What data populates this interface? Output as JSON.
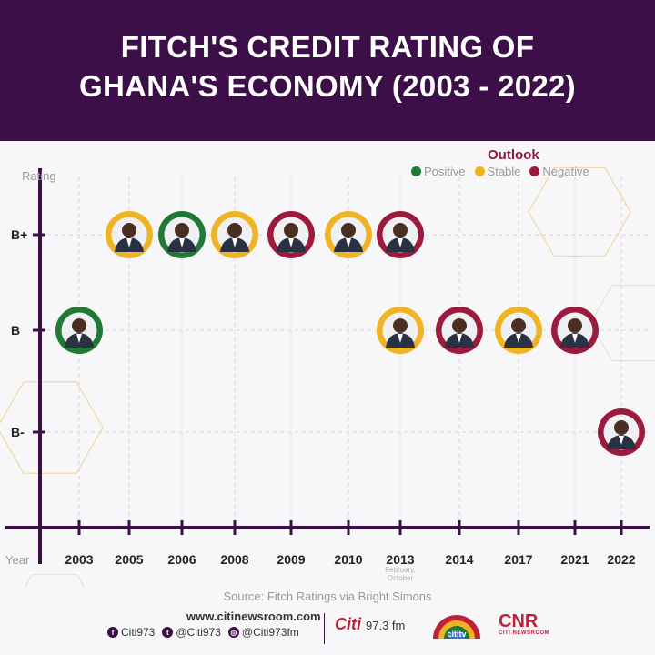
{
  "title_line1": "FITCH'S CREDIT RATING OF",
  "title_line2": "GHANA'S ECONOMY (2003 - 2022)",
  "legend": {
    "title": "Outlook",
    "items": [
      {
        "label": "Positive",
        "color": "#1e7a34"
      },
      {
        "label": "Stable",
        "color": "#f0b323"
      },
      {
        "label": "Negative",
        "color": "#9c1b3c"
      }
    ]
  },
  "colors": {
    "header": "#3d0f48",
    "axis": "#3d0f48",
    "positive": "#1e7a34",
    "stable": "#f0b323",
    "negative": "#9c1b3c"
  },
  "chart_data": {
    "type": "scatter",
    "ylabel": "Rating",
    "xlabel": "Year",
    "categories": [
      "2003",
      "2005",
      "2006",
      "2008",
      "2009",
      "2010",
      "2013",
      "2014",
      "2017",
      "2021",
      "2022"
    ],
    "rating_levels": [
      "B-",
      "B",
      "B+"
    ],
    "x_note": {
      "category": "2013",
      "text": [
        "February,",
        "October"
      ]
    },
    "grid": true,
    "legend_position": "top-right",
    "points": [
      {
        "year": "2003",
        "rating": "B",
        "outlook": "Positive",
        "icon": "president-portrait-icon"
      },
      {
        "year": "2005",
        "rating": "B+",
        "outlook": "Stable",
        "icon": "president-portrait-icon"
      },
      {
        "year": "2006",
        "rating": "B+",
        "outlook": "Positive",
        "icon": "president-portrait-icon"
      },
      {
        "year": "2008",
        "rating": "B+",
        "outlook": "Stable",
        "icon": "president-portrait-icon"
      },
      {
        "year": "2009",
        "rating": "B+",
        "outlook": "Negative",
        "icon": "president-portrait-icon"
      },
      {
        "year": "2010",
        "rating": "B+",
        "outlook": "Stable",
        "icon": "president-portrait-icon"
      },
      {
        "year": "2013",
        "rating": "B+",
        "outlook": "Negative",
        "icon": "president-portrait-icon"
      },
      {
        "year": "2013",
        "rating": "B",
        "outlook": "Stable",
        "icon": "president-portrait-icon"
      },
      {
        "year": "2014",
        "rating": "B",
        "outlook": "Negative",
        "icon": "president-portrait-icon"
      },
      {
        "year": "2017",
        "rating": "B",
        "outlook": "Stable",
        "icon": "president-portrait-icon"
      },
      {
        "year": "2021",
        "rating": "B",
        "outlook": "Negative",
        "icon": "president-portrait-icon"
      },
      {
        "year": "2022",
        "rating": "B-",
        "outlook": "Negative",
        "icon": "president-portrait-icon"
      }
    ]
  },
  "footer": {
    "source": "Source: Fitch Ratings via Bright Simons",
    "url": "www.citinewsroom.com",
    "socials": [
      {
        "label": "Citi973",
        "icon": "facebook-icon"
      },
      {
        "label": "@Citi973",
        "icon": "twitter-icon"
      },
      {
        "label": "@Citi973fm",
        "icon": "instagram-icon"
      }
    ],
    "logo_citi": "Citi",
    "logo_citi_freq": "97.3 fm",
    "logo_tv": "cititv",
    "logo_cnr": "CNR",
    "logo_cnr_sub": "CITI NEWSROOM"
  }
}
